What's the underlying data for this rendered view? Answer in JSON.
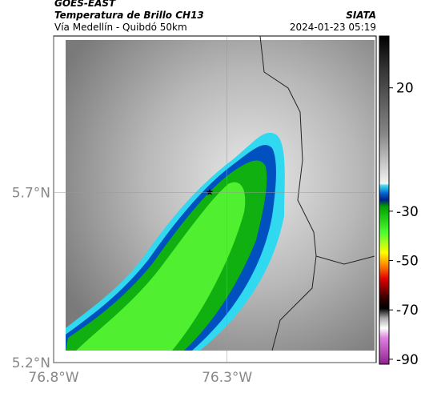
{
  "header": {
    "source": "GOES-EAST",
    "title": "Temperatura de Brillo CH13",
    "subtitle": "Vía Medellín - Quibdó 50km",
    "agency": "SIATA",
    "timestamp": "2024-01-23 05:19"
  },
  "map": {
    "lat_range": [
      5.2,
      6.16
    ],
    "lon_range": [
      -76.8,
      -75.87
    ],
    "lat_ticks": [
      {
        "value": 5.7,
        "label": "5.7°N"
      },
      {
        "value": 5.2,
        "label": "5.2°N"
      }
    ],
    "lon_ticks": [
      {
        "value": -76.8,
        "label": "76.8°W"
      },
      {
        "value": -76.3,
        "label": "76.3°W"
      }
    ]
  },
  "colorbar": {
    "range": [
      -92,
      41
    ],
    "ticks": [
      20,
      -30,
      -50,
      -70,
      -90
    ]
  }
}
